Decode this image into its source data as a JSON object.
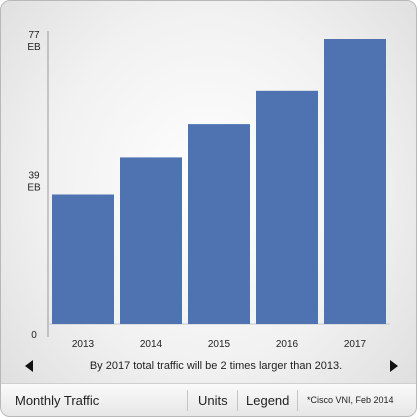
{
  "chart_data": {
    "type": "bar",
    "title": "",
    "xlabel": "",
    "ylabel": "",
    "categories": [
      "2013",
      "2014",
      "2015",
      "2016",
      "2017"
    ],
    "values": [
      35,
      45,
      54,
      63,
      77
    ],
    "ylim": [
      0,
      77
    ],
    "y_ticks": [
      {
        "value": 77,
        "label": "77",
        "unit": "EB"
      },
      {
        "value": 39,
        "label": "39",
        "unit": "EB"
      },
      {
        "value": 0,
        "label": "0",
        "unit": ""
      }
    ],
    "grid": false,
    "bar_color": "#4f73b1"
  },
  "caption": "By 2017 total traffic will be 2 times larger than 2013.",
  "nav": {
    "prev_icon": "chevron-left-icon",
    "next_icon": "chevron-right-icon"
  },
  "footer": {
    "title": "Monthly Traffic",
    "units_label": "Units",
    "legend_label": "Legend",
    "source": "*Cisco VNI, Feb 2014"
  }
}
